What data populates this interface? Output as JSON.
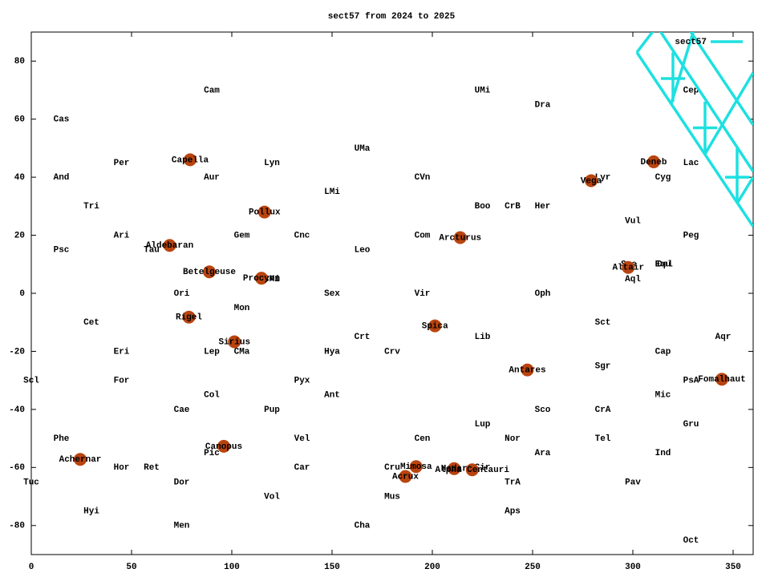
{
  "chart_data": {
    "type": "scatter",
    "title": "sect57 from 2024 to 2025",
    "xlim": [
      0,
      360
    ],
    "ylim": [
      -90,
      90
    ],
    "xticks": [
      0,
      50,
      100,
      150,
      200,
      250,
      300,
      350
    ],
    "yticks": [
      -80,
      -60,
      -40,
      -20,
      0,
      20,
      40,
      60,
      80
    ],
    "legend": "top-right",
    "labels": [
      {
        "text": "Cam",
        "x": 90,
        "y": 70
      },
      {
        "text": "UMi",
        "x": 225,
        "y": 70
      },
      {
        "text": "Cep",
        "x": 329,
        "y": 70
      },
      {
        "text": "Dra",
        "x": 255,
        "y": 65
      },
      {
        "text": "Cas",
        "x": 15,
        "y": 60
      },
      {
        "text": "UMa",
        "x": 165,
        "y": 50
      },
      {
        "text": "Per",
        "x": 45,
        "y": 45
      },
      {
        "text": "Lyn",
        "x": 120,
        "y": 45
      },
      {
        "text": "Lac",
        "x": 329,
        "y": 45
      },
      {
        "text": "And",
        "x": 15,
        "y": 40
      },
      {
        "text": "Aur",
        "x": 90,
        "y": 40
      },
      {
        "text": "CVn",
        "x": 195,
        "y": 40
      },
      {
        "text": "Lyr",
        "x": 285,
        "y": 40
      },
      {
        "text": "Cyg",
        "x": 315,
        "y": 40
      },
      {
        "text": "LMi",
        "x": 150,
        "y": 35
      },
      {
        "text": "Tri",
        "x": 30,
        "y": 30
      },
      {
        "text": "Boo",
        "x": 225,
        "y": 30
      },
      {
        "text": "CrB",
        "x": 240,
        "y": 30
      },
      {
        "text": "Her",
        "x": 255,
        "y": 30
      },
      {
        "text": "Vul",
        "x": 300,
        "y": 25
      },
      {
        "text": "Ari",
        "x": 45,
        "y": 20
      },
      {
        "text": "Gem",
        "x": 105,
        "y": 20
      },
      {
        "text": "Cnc",
        "x": 135,
        "y": 20
      },
      {
        "text": "Com",
        "x": 195,
        "y": 20
      },
      {
        "text": "Peg",
        "x": 329,
        "y": 20
      },
      {
        "text": "Psc",
        "x": 15,
        "y": 15
      },
      {
        "text": "Tau",
        "x": 60,
        "y": 15
      },
      {
        "text": "Leo",
        "x": 165,
        "y": 15
      },
      {
        "text": "Equ",
        "x": 315,
        "y": 10
      },
      {
        "text": "Del",
        "x": 316,
        "y": 10
      },
      {
        "text": "Sge",
        "x": 298,
        "y": 10
      },
      {
        "text": "Aql",
        "x": 300,
        "y": 5
      },
      {
        "text": "CMi",
        "x": 120,
        "y": 5
      },
      {
        "text": "Ori",
        "x": 75,
        "y": 0
      },
      {
        "text": "Sex",
        "x": 150,
        "y": 0
      },
      {
        "text": "Vir",
        "x": 195,
        "y": 0
      },
      {
        "text": "Oph",
        "x": 255,
        "y": 0
      },
      {
        "text": "Mon",
        "x": 105,
        "y": -5
      },
      {
        "text": "Cet",
        "x": 30,
        "y": -10
      },
      {
        "text": "Sct",
        "x": 285,
        "y": -10
      },
      {
        "text": "Crt",
        "x": 165,
        "y": -15
      },
      {
        "text": "Lib",
        "x": 225,
        "y": -15
      },
      {
        "text": "Aqr",
        "x": 345,
        "y": -15
      },
      {
        "text": "Eri",
        "x": 45,
        "y": -20
      },
      {
        "text": "Lep",
        "x": 90,
        "y": -20
      },
      {
        "text": "CMa",
        "x": 105,
        "y": -20
      },
      {
        "text": "Hya",
        "x": 150,
        "y": -20
      },
      {
        "text": "Crv",
        "x": 180,
        "y": -20
      },
      {
        "text": "Cap",
        "x": 315,
        "y": -20
      },
      {
        "text": "Sgr",
        "x": 285,
        "y": -25
      },
      {
        "text": "Scl",
        "x": 0,
        "y": -30
      },
      {
        "text": "For",
        "x": 45,
        "y": -30
      },
      {
        "text": "Pyx",
        "x": 135,
        "y": -30
      },
      {
        "text": "PsA",
        "x": 329,
        "y": -30
      },
      {
        "text": "Col",
        "x": 90,
        "y": -35
      },
      {
        "text": "Ant",
        "x": 150,
        "y": -35
      },
      {
        "text": "Mic",
        "x": 315,
        "y": -35
      },
      {
        "text": "Cae",
        "x": 75,
        "y": -40
      },
      {
        "text": "Pup",
        "x": 120,
        "y": -40
      },
      {
        "text": "Sco",
        "x": 255,
        "y": -40
      },
      {
        "text": "CrA",
        "x": 285,
        "y": -40
      },
      {
        "text": "Lup",
        "x": 225,
        "y": -45
      },
      {
        "text": "Gru",
        "x": 329,
        "y": -45
      },
      {
        "text": "Phe",
        "x": 15,
        "y": -50
      },
      {
        "text": "Vel",
        "x": 135,
        "y": -50
      },
      {
        "text": "Cen",
        "x": 195,
        "y": -50
      },
      {
        "text": "Nor",
        "x": 240,
        "y": -50
      },
      {
        "text": "Tel",
        "x": 285,
        "y": -50
      },
      {
        "text": "Pic",
        "x": 90,
        "y": -55
      },
      {
        "text": "Ara",
        "x": 255,
        "y": -55
      },
      {
        "text": "Ind",
        "x": 315,
        "y": -55
      },
      {
        "text": "Hor",
        "x": 45,
        "y": -60
      },
      {
        "text": "Ret",
        "x": 60,
        "y": -60
      },
      {
        "text": "Car",
        "x": 135,
        "y": -60
      },
      {
        "text": "Cru",
        "x": 180,
        "y": -60
      },
      {
        "text": "Cir",
        "x": 225,
        "y": -60
      },
      {
        "text": "Tuc",
        "x": 0,
        "y": -65
      },
      {
        "text": "Dor",
        "x": 75,
        "y": -65
      },
      {
        "text": "TrA",
        "x": 240,
        "y": -65
      },
      {
        "text": "Pav",
        "x": 300,
        "y": -65
      },
      {
        "text": "Mus",
        "x": 180,
        "y": -70
      },
      {
        "text": "Vol",
        "x": 120,
        "y": -70
      },
      {
        "text": "Hyi",
        "x": 30,
        "y": -75
      },
      {
        "text": "Aps",
        "x": 240,
        "y": -75
      },
      {
        "text": "Men",
        "x": 75,
        "y": -80
      },
      {
        "text": "Cha",
        "x": 165,
        "y": -80
      },
      {
        "text": "Oct",
        "x": 329,
        "y": -85
      }
    ],
    "star_color": "#b9440f",
    "stars": [
      {
        "name": "Capella",
        "x": 79.2,
        "y": 46.0
      },
      {
        "name": "Aldebaran",
        "x": 69.0,
        "y": 16.5
      },
      {
        "name": "Betelgeuse",
        "x": 88.8,
        "y": 7.4
      },
      {
        "name": "Rigel",
        "x": 78.6,
        "y": -8.2
      },
      {
        "name": "Sirius",
        "x": 101.3,
        "y": -16.7
      },
      {
        "name": "Procyon",
        "x": 114.8,
        "y": 5.2
      },
      {
        "name": "Pollux",
        "x": 116.3,
        "y": 28.0
      },
      {
        "name": "Canopus",
        "x": 96.0,
        "y": -52.7
      },
      {
        "name": "Achernar",
        "x": 24.4,
        "y": -57.2
      },
      {
        "name": "Acrux",
        "x": 186.6,
        "y": -63.1
      },
      {
        "name": "Mimosa",
        "x": 191.9,
        "y": -59.7
      },
      {
        "name": "Hadar",
        "x": 210.9,
        "y": -60.4
      },
      {
        "name": "Alpha Centauri",
        "x": 219.9,
        "y": -60.8
      },
      {
        "name": "Spica",
        "x": 201.3,
        "y": -11.2
      },
      {
        "name": "Arcturus",
        "x": 213.9,
        "y": 19.2
      },
      {
        "name": "Antares",
        "x": 247.4,
        "y": -26.4
      },
      {
        "name": "Vega",
        "x": 279.2,
        "y": 38.8
      },
      {
        "name": "Altair",
        "x": 297.7,
        "y": 8.9
      },
      {
        "name": "Deneb",
        "x": 310.4,
        "y": 45.3
      },
      {
        "name": "Fomalhaut",
        "x": 344.4,
        "y": -29.6
      }
    ],
    "series": [
      {
        "name": "sect57",
        "color": "#1ee0e0",
        "x": [
          302,
          312,
          null,
          302,
          360,
          null,
          312,
          360,
          null,
          327,
          360,
          null,
          319,
          331,
          null,
          336,
          360,
          null,
          352,
          360,
          null,
          320,
          320,
          null,
          314,
          326,
          null,
          336,
          336,
          null,
          330,
          342,
          null,
          352,
          352,
          null,
          346,
          358
        ],
        "values": [
          83,
          92,
          null,
          83,
          23,
          null,
          92,
          42,
          null,
          92,
          58,
          null,
          65,
          92,
          null,
          48,
          76,
          null,
          31,
          40,
          null,
          66,
          83,
          null,
          74,
          74,
          null,
          48,
          66,
          null,
          57,
          57,
          null,
          31,
          50,
          null,
          40,
          40
        ]
      }
    ]
  }
}
